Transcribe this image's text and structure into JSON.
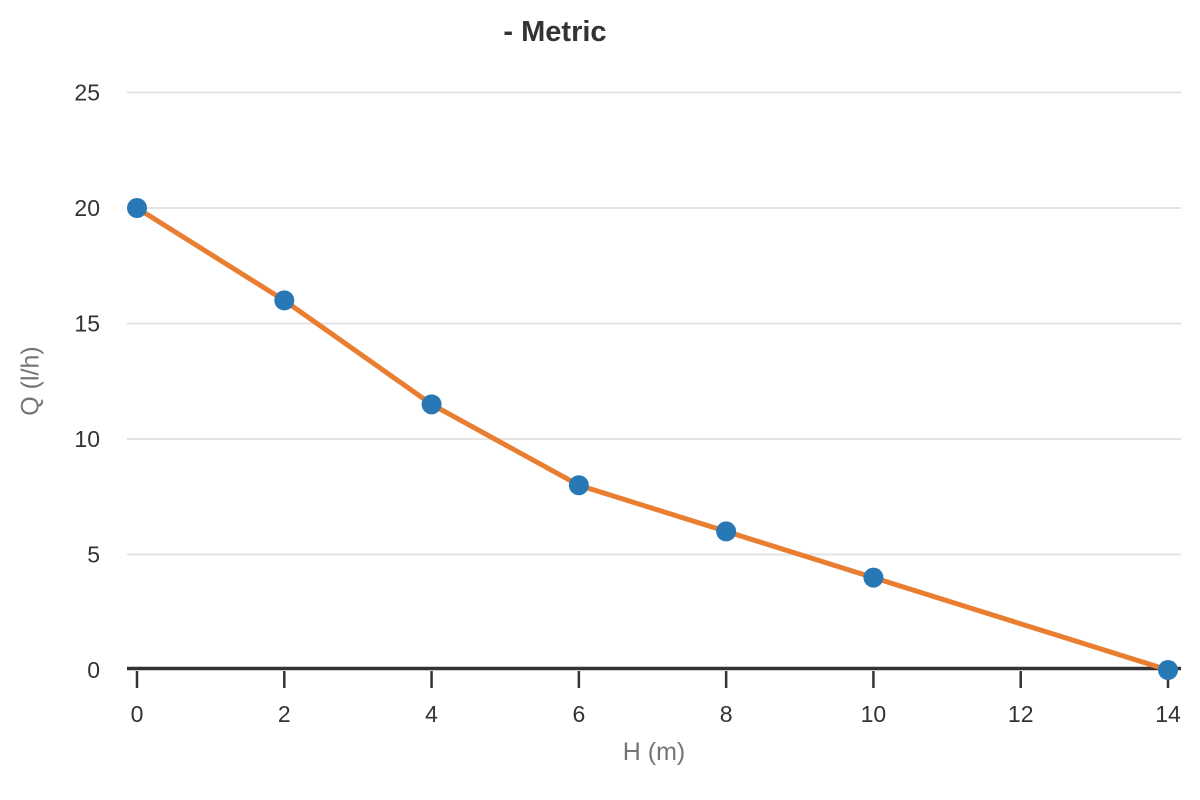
{
  "chart_data": {
    "type": "line",
    "title": "- Metric",
    "xlabel": "H (m)",
    "ylabel": "Q (l/h)",
    "x": [
      0,
      2,
      4,
      6,
      8,
      10,
      14
    ],
    "y": [
      20,
      16,
      11.5,
      8,
      6,
      4,
      0
    ],
    "xticks": [
      0,
      2,
      4,
      6,
      8,
      10,
      12,
      14
    ],
    "yticks": [
      0,
      5,
      10,
      15,
      20,
      25
    ],
    "xlim": [
      0,
      14
    ],
    "ylim": [
      0,
      25
    ],
    "grid": "horizontal",
    "legend": "none",
    "colors": {
      "line": "#e97e31",
      "marker": "#2878b5",
      "grid": "#e4e4e4",
      "axis": "#333333",
      "tick_label": "#333333",
      "axis_label": "#757575",
      "title": "#333333",
      "background": "#ffffff"
    }
  }
}
